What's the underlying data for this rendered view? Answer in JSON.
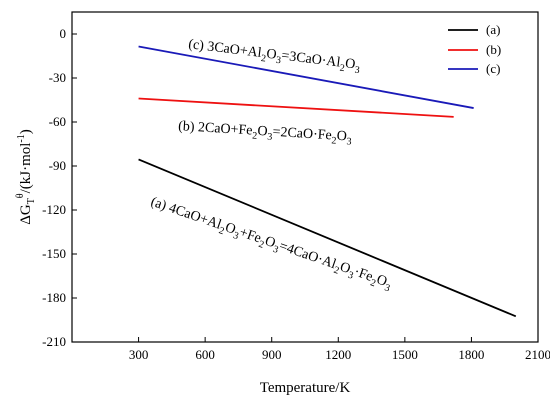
{
  "chart_data": {
    "type": "line",
    "xlabel": "Temperature/K",
    "ylabel": "ΔG",
    "ylabel_sub": "T",
    "ylabel_sup": "θ",
    "ylabel_units": "/(kJ·mol",
    "ylabel_units_sup": "-1",
    "ylabel_units_close": ")",
    "xlim": [
      0,
      2100
    ],
    "ylim": [
      -210,
      15
    ],
    "xticks": [
      300,
      600,
      900,
      1200,
      1500,
      1800,
      2100
    ],
    "yticks": [
      0,
      -30,
      -60,
      -90,
      -120,
      -150,
      -180,
      -210
    ],
    "legend_position": "top-right",
    "series": [
      {
        "name": "(a)",
        "color": "#000000",
        "x": [
          300,
          2000
        ],
        "y": [
          -85.5,
          -192.5
        ]
      },
      {
        "name": "(b)",
        "color": "#ee1111",
        "x": [
          300,
          1720
        ],
        "y": [
          -44.0,
          -56.5
        ]
      },
      {
        "name": "(c)",
        "color": "#1a1ab8",
        "x": [
          300,
          1810
        ],
        "y": [
          -8.5,
          -50.5
        ]
      }
    ],
    "annotations": {
      "c": [
        "(c) 3CaO+Al",
        "2",
        "O",
        "3",
        "=3CaO·Al",
        "2",
        "O",
        "3"
      ],
      "b": [
        "(b) 2CaO+Fe",
        "2",
        "O",
        "3",
        "=2CaO·Fe",
        "2",
        "O",
        "3"
      ],
      "a": [
        "(a) 4CaO+Al",
        "2",
        "O",
        "3",
        "+Fe",
        "2",
        "O",
        "3",
        "=4CaO·Al",
        "2",
        "O",
        "3",
        "·Fe",
        "2",
        "O",
        "3"
      ]
    }
  }
}
